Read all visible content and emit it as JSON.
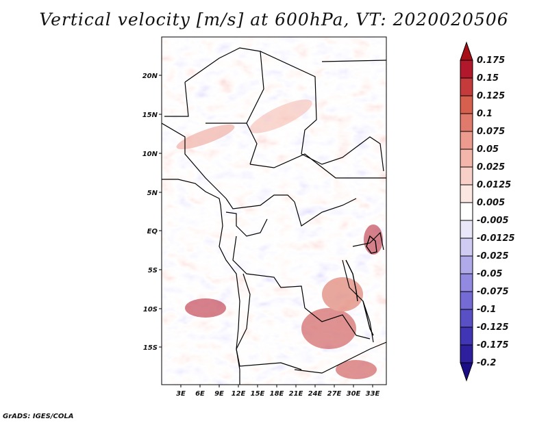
{
  "title": "Vertical velocity [m/s] at 600hPa, VT: 2020020506",
  "footer": "GrADS: IGES/COLA",
  "map": {
    "lat_labels": [
      "20N",
      "15N",
      "10N",
      "5N",
      "EQ",
      "5S",
      "10S",
      "15S"
    ],
    "lon_labels": [
      "3E",
      "6E",
      "9E",
      "12E",
      "15E",
      "18E",
      "21E",
      "24E",
      "27E",
      "30E",
      "33E"
    ]
  },
  "colorbar": {
    "levels": [
      "0.175",
      "0.15",
      "0.125",
      "0.1",
      "0.075",
      "0.05",
      "0.025",
      "0.0125",
      "0.005",
      "-0.005",
      "-0.0125",
      "-0.025",
      "-0.05",
      "-0.075",
      "-0.1",
      "-0.125",
      "-0.175",
      "-0.2"
    ],
    "colors": [
      "#a50f15",
      "#b2182b",
      "#c53a3a",
      "#d6604d",
      "#e07a6c",
      "#ec9b8e",
      "#f4b6aa",
      "#f8d0c8",
      "#fde7e2",
      "#ffffff",
      "#e8e6f8",
      "#cfcbf2",
      "#b1aaea",
      "#928ae0",
      "#746bd4",
      "#5a50c6",
      "#4035b4",
      "#2d1f9e",
      "#1a0d85"
    ]
  }
}
